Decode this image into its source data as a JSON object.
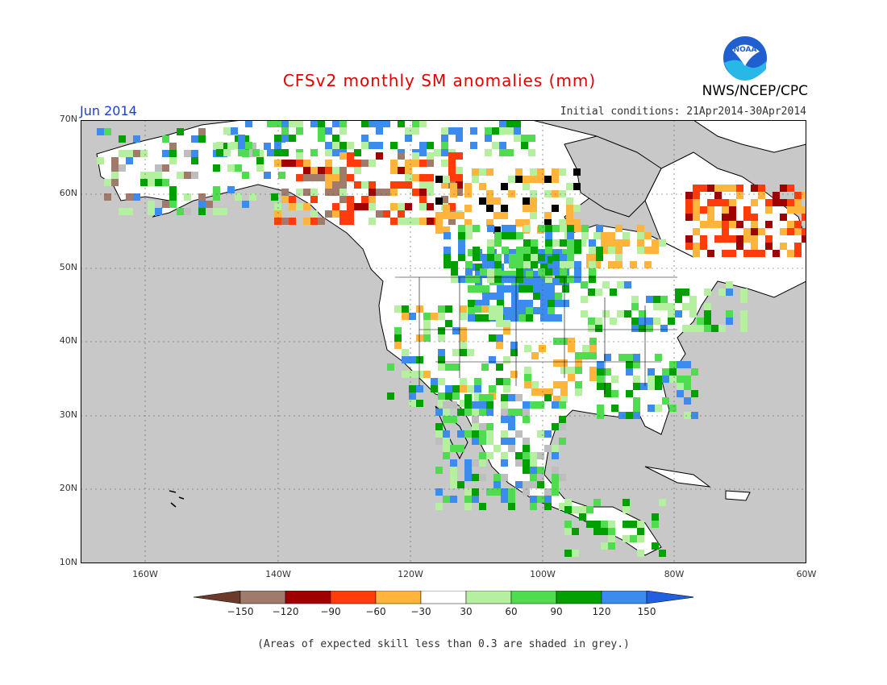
{
  "title": "CFSv2 monthly SM anomalies (mm)",
  "period": "Jun 2014",
  "initial_conditions": "Initial conditions: 21Apr2014-30Apr2014",
  "agency": "NWS/NCEP/CPC",
  "logo_text": "NOAA",
  "footnote": "(Areas of expected skill less than 0.3 are shaded in grey.)",
  "colors": {
    "ocean": "#c8c8c8",
    "land": "#ffffff",
    "grey_skill": "#bebebe",
    "title": "#e00000",
    "period": "#1a3fd8"
  },
  "map": {
    "lat_labels": [
      "70N",
      "60N",
      "50N",
      "40N",
      "30N",
      "20N",
      "10N"
    ],
    "lon_labels": [
      "160W",
      "140W",
      "120W",
      "100W",
      "80W",
      "60W"
    ],
    "lon_range": [
      -170,
      -60
    ],
    "lat_range": [
      10,
      70
    ]
  },
  "colorbar": {
    "bins": [
      {
        "color": "#6b3a2a"
      },
      {
        "color": "#a07a6a"
      },
      {
        "color": "#a00000"
      },
      {
        "color": "#ff3c0a"
      },
      {
        "color": "#ffb43c"
      },
      {
        "color": "#ffffff"
      },
      {
        "color": "#b4f0a0"
      },
      {
        "color": "#50dc50"
      },
      {
        "color": "#00a000"
      },
      {
        "color": "#3c8cf0"
      },
      {
        "color": "#2060e0"
      }
    ],
    "labels": [
      "−150",
      "−120",
      "−90",
      "−60",
      "−30",
      "30",
      "60",
      "90",
      "120",
      "150"
    ]
  },
  "anomaly_patches": [
    {
      "region": "Alaska",
      "value": "mixed"
    },
    {
      "region": "NW Canada",
      "value": "-90"
    },
    {
      "region": "Quebec/Labrador",
      "value": "-90"
    },
    {
      "region": "Northern Plains",
      "value": "150"
    },
    {
      "region": "Southwest US",
      "value": "90"
    }
  ]
}
